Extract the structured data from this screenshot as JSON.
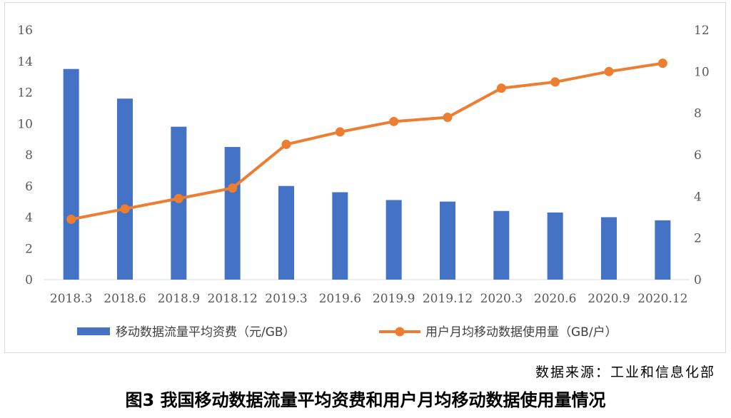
{
  "chart_data": {
    "type": "bar+line",
    "categories": [
      "2018.3",
      "2018.6",
      "2018.9",
      "2018.12",
      "2019.3",
      "2019.6",
      "2019.9",
      "2019.12",
      "2020.3",
      "2020.6",
      "2020.9",
      "2020.12"
    ],
    "series": [
      {
        "name": "移动数据流量平均资费（元/GB）",
        "type": "bar",
        "axis": "left",
        "color": "#4472c4",
        "values": [
          13.5,
          11.6,
          9.8,
          8.5,
          6.0,
          5.6,
          5.1,
          5.0,
          4.4,
          4.3,
          4.0,
          3.8
        ]
      },
      {
        "name": "用户月均移动数据使用量（GB/户）",
        "type": "line",
        "axis": "right",
        "color": "#ed7d31",
        "values": [
          2.9,
          3.4,
          3.9,
          4.4,
          6.5,
          7.1,
          7.6,
          7.8,
          9.2,
          9.5,
          10.0,
          10.4
        ]
      }
    ],
    "y_left": {
      "min": 0,
      "max": 16,
      "step": 2,
      "ticks": [
        "0",
        "2",
        "4",
        "6",
        "8",
        "10",
        "12",
        "14",
        "16"
      ]
    },
    "y_right": {
      "min": 0,
      "max": 12,
      "step": 2,
      "ticks": [
        "0",
        "2",
        "4",
        "6",
        "8",
        "10",
        "12"
      ]
    },
    "grid": false,
    "legend_position": "bottom"
  },
  "source": "数据来源：工业和信息化部",
  "caption": "图3 我国移动数据流量平均资费和用户月均移动数据使用量情况"
}
